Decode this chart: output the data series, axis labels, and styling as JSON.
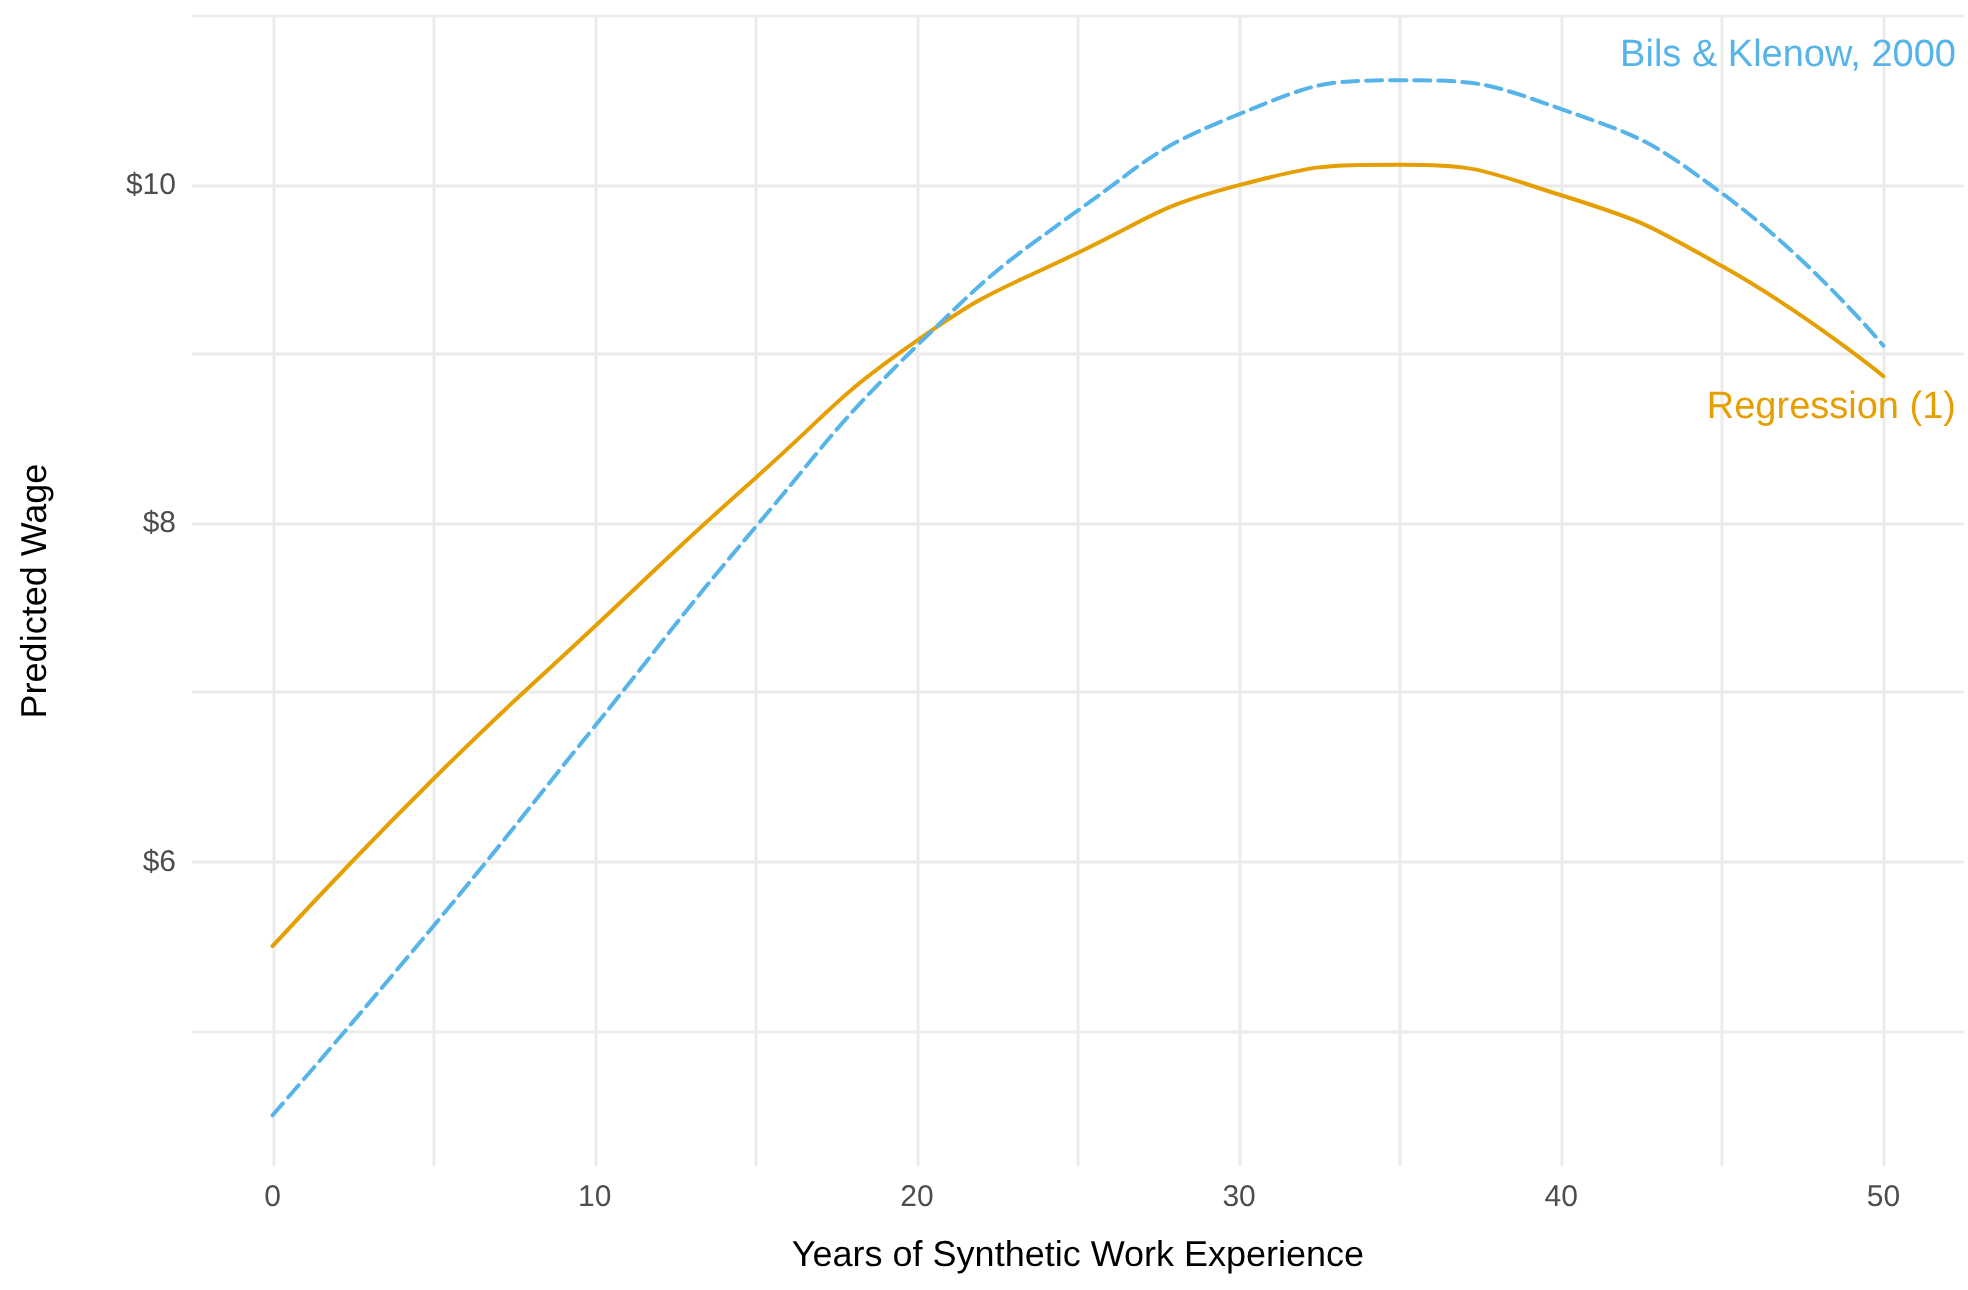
{
  "chart_data": {
    "type": "line",
    "xlabel": "Years of Synthetic Work Experience",
    "ylabel": "Predicted Wage",
    "x": [
      0,
      5,
      10,
      15,
      20,
      25,
      30,
      35,
      40,
      45,
      50
    ],
    "series": [
      {
        "name": "Regression (1)",
        "color": "#e69f00",
        "line_style": "solid",
        "values": [
          5.5,
          6.49,
          7.39,
          8.27,
          9.08,
          9.6,
          10.0,
          10.12,
          9.94,
          9.52,
          8.87
        ]
      },
      {
        "name": "Bils & Klenow, 2000",
        "color": "#56b4e9",
        "line_style": "dashed",
        "values": [
          4.5,
          5.62,
          6.8,
          7.98,
          9.05,
          9.85,
          10.42,
          10.62,
          10.45,
          9.95,
          9.05
        ]
      }
    ],
    "xlim": [
      -2.5,
      52.5
    ],
    "ylim": [
      4.2,
      11.0
    ],
    "xticks": [
      0,
      {
        "value": 5,
        "label": null
      },
      10,
      {
        "value": 15,
        "label": null
      },
      20,
      {
        "value": 25,
        "label": null
      },
      30,
      {
        "value": 35,
        "label": null
      },
      40,
      {
        "value": 45,
        "label": null
      },
      50
    ],
    "yticks": [
      {
        "value": 5,
        "label": null
      },
      {
        "value": 6,
        "label": "$6"
      },
      {
        "value": 7,
        "label": null
      },
      {
        "value": 8,
        "label": "$8"
      },
      {
        "value": 9,
        "label": null
      },
      {
        "value": 10,
        "label": "$10"
      },
      {
        "value": 11,
        "label": null
      }
    ],
    "grid": true,
    "legend": false,
    "marker": "none"
  }
}
